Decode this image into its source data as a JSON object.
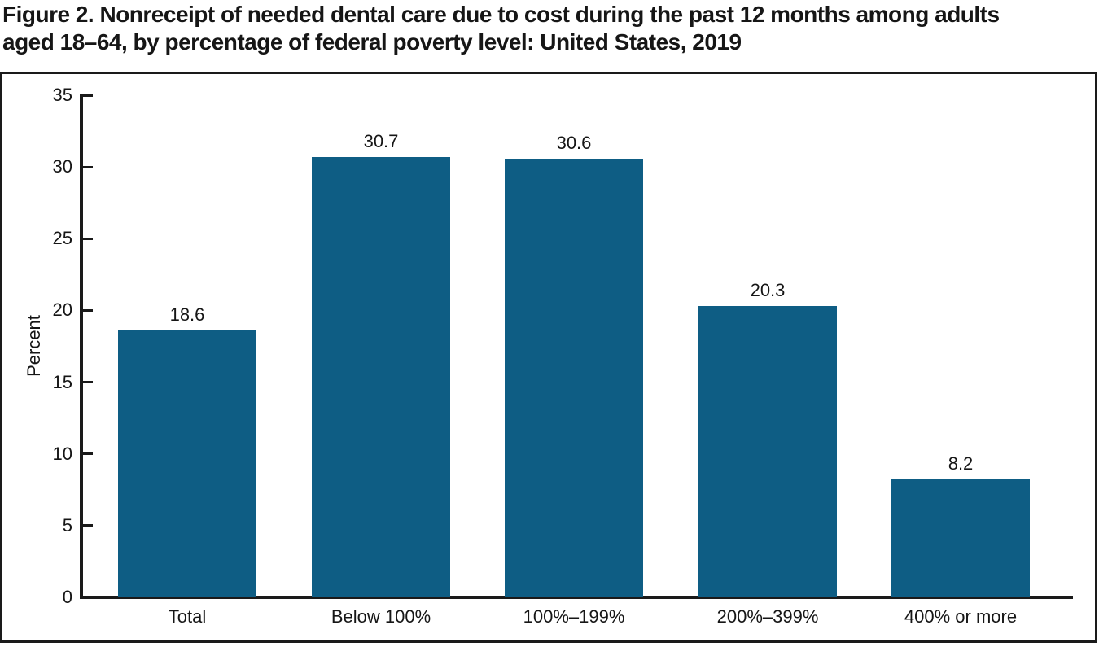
{
  "figure": {
    "title": "Figure 2. Nonreceipt of needed dental care due to cost during the past 12 months among adults aged 18–64, by percentage of federal poverty level: United States, 2019",
    "title_lines": [
      "Figure 2. Nonreceipt of needed dental care due to cost during the past 12 months among adults",
      "aged 18–64, by percentage of federal poverty level: United States, 2019"
    ]
  },
  "chart_data": {
    "type": "bar",
    "title": "Figure 2. Nonreceipt of needed dental care due to cost during the past 12 months among adults aged 18–64, by percentage of federal poverty level: United States, 2019",
    "categories": [
      "Total",
      "Below 100%",
      "100%–199%",
      "200%–399%",
      "400% or more"
    ],
    "values": [
      18.6,
      30.7,
      30.6,
      20.3,
      8.2
    ],
    "value_labels": [
      "18.6",
      "30.7",
      "30.6",
      "20.3",
      "8.2"
    ],
    "xlabel": "",
    "ylabel": "Percent",
    "ylim": [
      0,
      35
    ],
    "yticks": [
      0,
      5,
      10,
      15,
      20,
      25,
      30,
      35
    ],
    "grid": false,
    "legend": "none",
    "bar_color": "#0E5D84",
    "axis_color": "#1A1A1A",
    "text_color": "#161616"
  }
}
